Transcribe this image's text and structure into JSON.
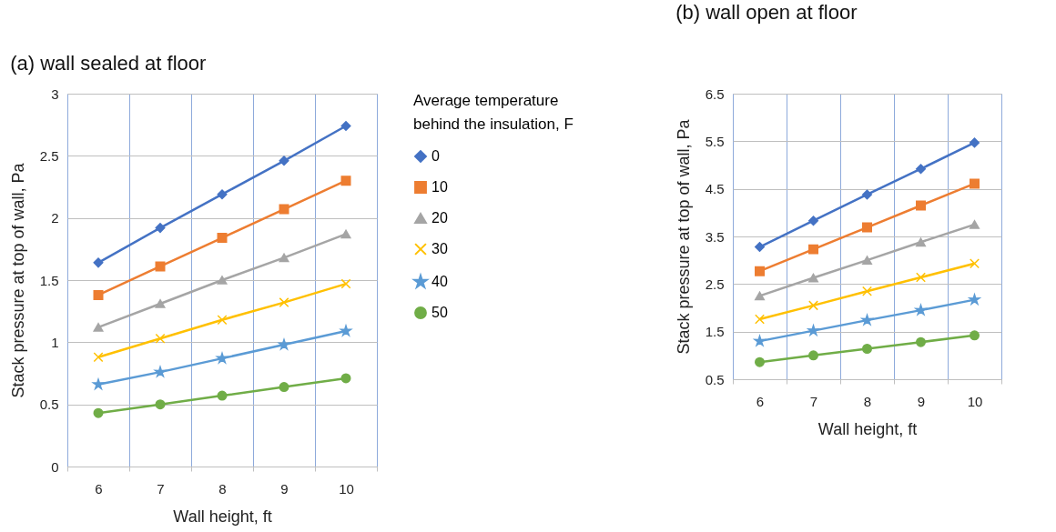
{
  "chart_data": [
    {
      "type": "line",
      "title": "(a) wall sealed at floor",
      "xlabel": "Wall height, ft",
      "ylabel": "Stack pressure at top of wall, Pa",
      "legend_title": "Average temperature behind the insulation, F",
      "legend": "right",
      "grid": true,
      "categories": [
        "6",
        "7",
        "8",
        "9",
        "10"
      ],
      "ylim": [
        0,
        3
      ],
      "yticks": [
        0,
        0.5,
        1,
        1.5,
        2,
        2.5,
        3
      ],
      "series": [
        {
          "name": "0",
          "color": "#4472c4",
          "marker": "diamond",
          "values": [
            1.64,
            1.92,
            2.19,
            2.46,
            2.74
          ]
        },
        {
          "name": "10",
          "color": "#ed7d31",
          "marker": "square",
          "values": [
            1.38,
            1.61,
            1.84,
            2.07,
            2.3
          ]
        },
        {
          "name": "20",
          "color": "#a5a5a5",
          "marker": "triangle",
          "values": [
            1.12,
            1.31,
            1.5,
            1.68,
            1.87
          ]
        },
        {
          "name": "30",
          "color": "#ffc000",
          "marker": "cross",
          "values": [
            0.88,
            1.03,
            1.18,
            1.32,
            1.47
          ]
        },
        {
          "name": "40",
          "color": "#5b9bd5",
          "marker": "star",
          "values": [
            0.66,
            0.76,
            0.87,
            0.98,
            1.09
          ]
        },
        {
          "name": "50",
          "color": "#70ad47",
          "marker": "circle",
          "values": [
            0.43,
            0.5,
            0.57,
            0.64,
            0.71
          ]
        }
      ]
    },
    {
      "type": "line",
      "title": "(b) wall open at floor",
      "xlabel": "Wall height, ft",
      "ylabel": "Stack pressure at top of wall, Pa",
      "grid": true,
      "categories": [
        "6",
        "7",
        "8",
        "9",
        "10"
      ],
      "ylim": [
        0.5,
        6.5
      ],
      "yticks": [
        0.5,
        1.5,
        2.5,
        3.5,
        4.5,
        5.5,
        6.5
      ],
      "series": [
        {
          "name": "0",
          "color": "#4472c4",
          "marker": "diamond",
          "values": [
            3.28,
            3.83,
            4.38,
            4.92,
            5.47
          ]
        },
        {
          "name": "10",
          "color": "#ed7d31",
          "marker": "square",
          "values": [
            2.77,
            3.23,
            3.69,
            4.15,
            4.61
          ]
        },
        {
          "name": "20",
          "color": "#a5a5a5",
          "marker": "triangle",
          "values": [
            2.25,
            2.63,
            3.0,
            3.38,
            3.75
          ]
        },
        {
          "name": "30",
          "color": "#ffc000",
          "marker": "cross",
          "values": [
            1.76,
            2.05,
            2.35,
            2.64,
            2.93
          ]
        },
        {
          "name": "40",
          "color": "#5b9bd5",
          "marker": "star",
          "values": [
            1.3,
            1.52,
            1.74,
            1.95,
            2.17
          ]
        },
        {
          "name": "50",
          "color": "#70ad47",
          "marker": "circle",
          "values": [
            0.86,
            1.0,
            1.14,
            1.28,
            1.42
          ]
        }
      ]
    }
  ]
}
